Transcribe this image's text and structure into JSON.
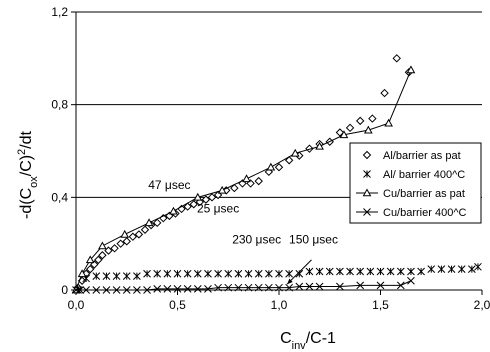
{
  "chart_data": {
    "type": "scatter",
    "title": "",
    "xlabel": {
      "main": "C",
      "sub": "inv",
      "rest": "/C-1"
    },
    "ylabel": {
      "pre": "-d(C",
      "sub": "ox",
      "mid": "/C)",
      "sup": "2",
      "post": "/dt"
    },
    "xlim": [
      0,
      2
    ],
    "ylim": [
      0,
      1.2
    ],
    "x_ticks": [
      0,
      0.5,
      1,
      1.5,
      2
    ],
    "x_tick_labels": [
      "0,0",
      "0,5",
      "1,0",
      "1,5",
      "2,0"
    ],
    "y_ticks": [
      0,
      0.4,
      0.8,
      1.2
    ],
    "y_tick_labels": [
      "0",
      "0,4",
      "0,8",
      "1,2"
    ],
    "grid": "horizontal",
    "legend_position": "right",
    "series": [
      {
        "name": "Al/barrier as pat",
        "marker": "diamond",
        "line": false,
        "x": [
          0.01,
          0.03,
          0.05,
          0.07,
          0.09,
          0.11,
          0.13,
          0.16,
          0.19,
          0.22,
          0.25,
          0.28,
          0.31,
          0.34,
          0.37,
          0.4,
          0.43,
          0.46,
          0.49,
          0.52,
          0.55,
          0.58,
          0.61,
          0.64,
          0.67,
          0.7,
          0.74,
          0.78,
          0.82,
          0.86,
          0.9,
          0.95,
          1.0,
          1.05,
          1.1,
          1.15,
          1.2,
          1.25,
          1.3,
          1.35,
          1.4,
          1.46,
          1.52,
          1.58,
          1.64
        ],
        "y": [
          0.01,
          0.04,
          0.07,
          0.09,
          0.11,
          0.13,
          0.15,
          0.17,
          0.18,
          0.2,
          0.21,
          0.23,
          0.24,
          0.26,
          0.28,
          0.29,
          0.31,
          0.32,
          0.33,
          0.35,
          0.36,
          0.37,
          0.38,
          0.39,
          0.4,
          0.41,
          0.43,
          0.44,
          0.46,
          0.46,
          0.47,
          0.51,
          0.53,
          0.56,
          0.58,
          0.61,
          0.63,
          0.64,
          0.68,
          0.7,
          0.73,
          0.74,
          0.85,
          1.0,
          0.94
        ]
      },
      {
        "name": "Al/ barrier 400^C",
        "marker": "asterisk",
        "line": false,
        "x": [
          0.01,
          0.05,
          0.1,
          0.2,
          0.3,
          0.4,
          0.5,
          0.6,
          0.7,
          0.8,
          0.9,
          1.0,
          1.1,
          1.2,
          1.3,
          1.4,
          1.5,
          1.6,
          1.7,
          1.8,
          1.9,
          1.98,
          0.15,
          0.25,
          0.35,
          0.45,
          0.55,
          0.65,
          0.75,
          0.85,
          0.95,
          1.05,
          1.15,
          1.25,
          1.35,
          1.45,
          1.55,
          1.65,
          1.75,
          1.85,
          1.95
        ],
        "y": [
          0.0,
          0.05,
          0.06,
          0.06,
          0.06,
          0.07,
          0.07,
          0.07,
          0.07,
          0.07,
          0.07,
          0.07,
          0.07,
          0.08,
          0.08,
          0.08,
          0.08,
          0.08,
          0.08,
          0.09,
          0.09,
          0.1,
          0.06,
          0.06,
          0.07,
          0.07,
          0.07,
          0.07,
          0.07,
          0.07,
          0.07,
          0.07,
          0.08,
          0.08,
          0.08,
          0.08,
          0.08,
          0.08,
          0.09,
          0.09,
          0.09
        ]
      },
      {
        "name": "Cu/barrier as pat",
        "marker": "triangle",
        "line": true,
        "x": [
          0.0,
          0.03,
          0.07,
          0.13,
          0.24,
          0.36,
          0.48,
          0.6,
          0.72,
          0.84,
          0.96,
          1.08,
          1.2,
          1.32,
          1.44,
          1.54,
          1.65
        ],
        "y": [
          0.0,
          0.07,
          0.13,
          0.19,
          0.24,
          0.29,
          0.34,
          0.4,
          0.43,
          0.48,
          0.53,
          0.59,
          0.62,
          0.67,
          0.69,
          0.72,
          0.95
        ]
      },
      {
        "name": "Cu/barrier 400^C",
        "marker": "cross",
        "line": true,
        "x": [
          0.0,
          0.02,
          0.05,
          0.1,
          0.15,
          0.2,
          0.25,
          0.3,
          0.35,
          0.4,
          0.45,
          0.5,
          0.55,
          0.6,
          0.65,
          0.7,
          0.75,
          0.8,
          0.85,
          0.9,
          0.95,
          1.0,
          1.05,
          1.1,
          1.15,
          1.2,
          1.3,
          1.4,
          1.5,
          1.6,
          1.65
        ],
        "y": [
          0.0,
          0.0,
          0.0,
          0.0,
          0.0,
          0.0,
          0.0,
          0.0,
          0.0,
          0.005,
          0.005,
          0.005,
          0.005,
          0.005,
          0.005,
          0.01,
          0.01,
          0.01,
          0.01,
          0.01,
          0.01,
          0.01,
          0.01,
          0.015,
          0.015,
          0.015,
          0.015,
          0.02,
          0.02,
          0.02,
          0.04
        ]
      }
    ],
    "annotations": [
      {
        "text": "47 μsec",
        "x": 0.46,
        "y": 0.435
      },
      {
        "text": "25 μsec",
        "x": 0.7,
        "y": 0.335
      },
      {
        "text": "230 μsec",
        "x": 0.89,
        "y": 0.2
      },
      {
        "text": "150 μsec",
        "x": 1.17,
        "y": 0.2
      }
    ],
    "arrows": [
      {
        "from": [
          1.16,
          0.13
        ],
        "to": [
          1.04,
          0.025
        ]
      }
    ]
  }
}
